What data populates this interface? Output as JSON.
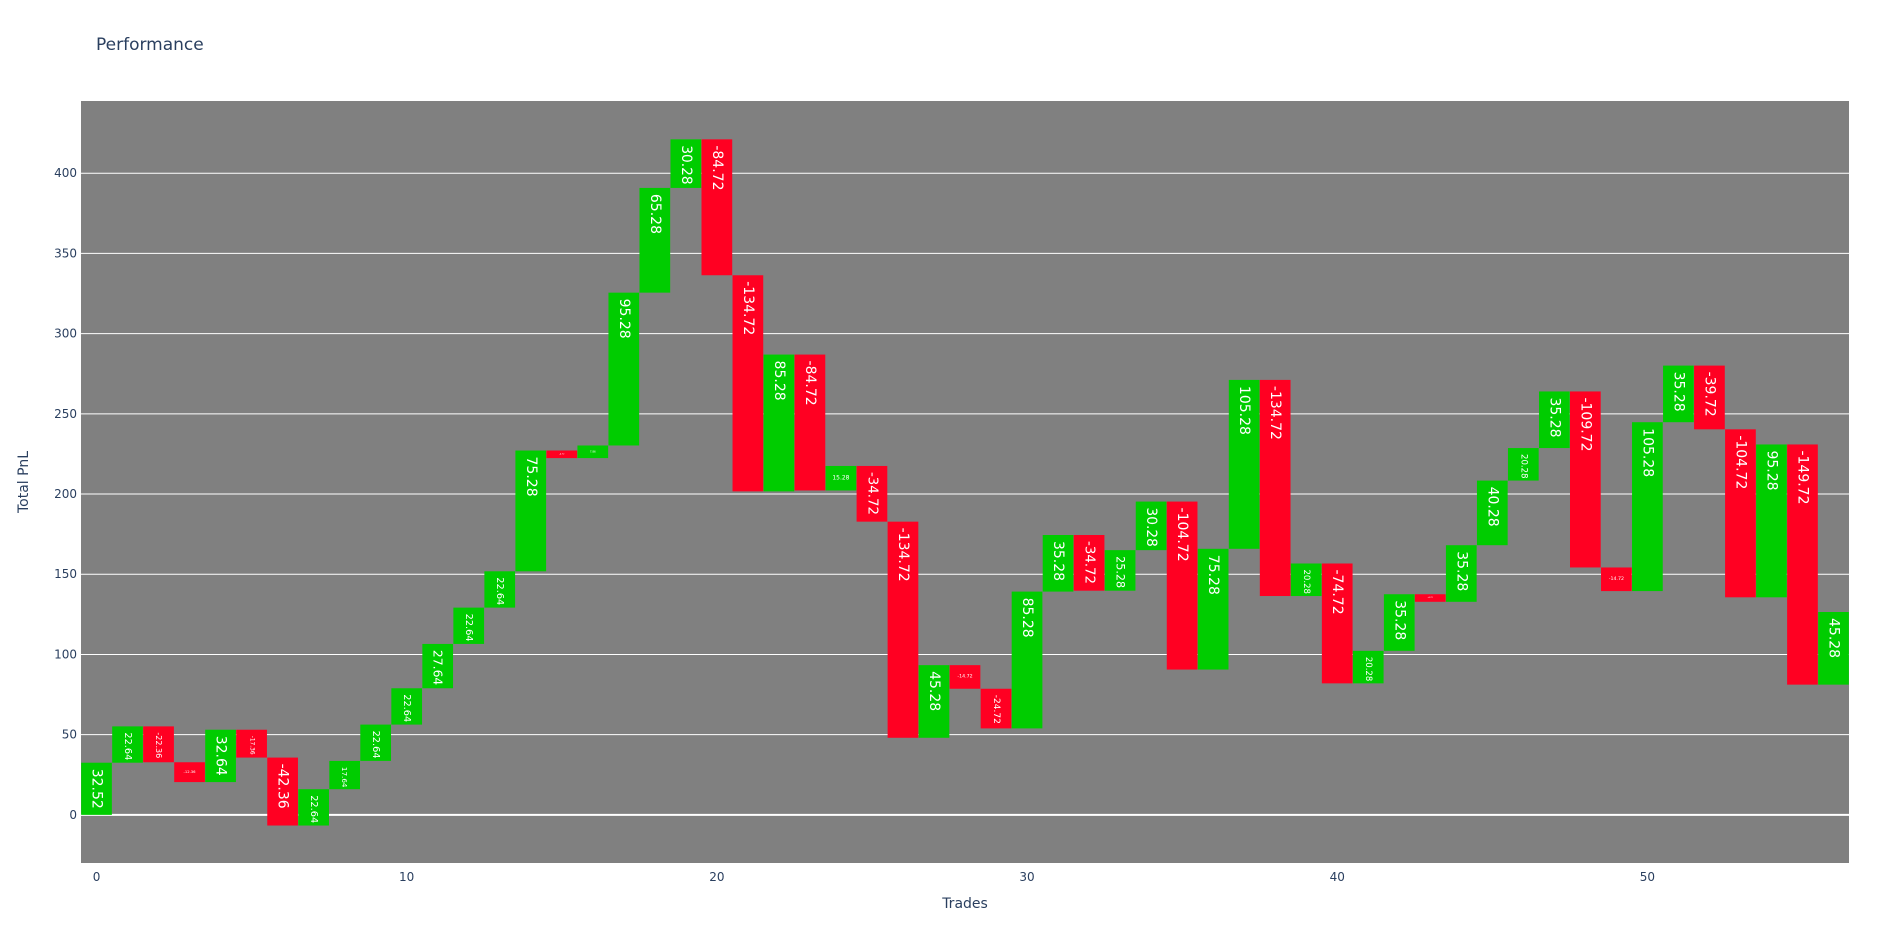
{
  "chart_data": {
    "type": "waterfall",
    "title": "Performance",
    "xlabel": "Trades",
    "ylabel": "Total PnL",
    "xlim": [
      -0.5,
      56.5
    ],
    "ylim": [
      -30,
      445
    ],
    "x_ticks": [
      0,
      10,
      20,
      30,
      40,
      50
    ],
    "y_ticks": [
      0,
      50,
      100,
      150,
      200,
      250,
      300,
      350,
      400
    ],
    "grid": true,
    "legend": "none",
    "colors": {
      "increase": "#00cc00",
      "decrease": "#ff0022",
      "plot_background": "#808080",
      "gridline": "#ffffff",
      "text": "#2a3f5f"
    },
    "values": [
      32.52,
      22.64,
      -22.36,
      -12.36,
      32.64,
      -17.36,
      -42.36,
      22.64,
      17.64,
      22.64,
      22.64,
      27.64,
      22.64,
      22.64,
      75.28,
      -4.72,
      7.86,
      95.28,
      65.28,
      30.28,
      -84.72,
      -134.72,
      85.28,
      -84.72,
      15.28,
      -34.72,
      -134.72,
      45.28,
      -14.72,
      -24.72,
      85.28,
      35.28,
      -34.72,
      25.28,
      30.28,
      -104.72,
      75.28,
      105.28,
      -134.72,
      20.28,
      -74.72,
      20.28,
      35.28,
      -4.72,
      35.28,
      40.28,
      20.28,
      35.28,
      -109.72,
      -14.72,
      105.28,
      35.28,
      -39.72,
      -104.72,
      95.28,
      -149.72,
      45.28
    ],
    "labels": [
      "32.52",
      "22.64",
      "-22.36",
      "-12.36",
      "32.64",
      "-17.36",
      "-42.36",
      "22.64",
      "17.64",
      "22.64",
      "22.64",
      "27.64",
      "22.64",
      "22.64",
      "75.28",
      "-4.72",
      "7.86",
      "95.28",
      "65.28",
      "30.28",
      "-84.72",
      "-134.72",
      "85.28",
      "-84.72",
      "15.28",
      "-34.72",
      "-134.72",
      "45.28",
      "-14.72",
      "-24.72",
      "85.28",
      "35.28",
      "-34.72",
      "25.28",
      "30.28",
      "-104.72",
      "75.28",
      "105.28",
      "-134.72",
      "20.28",
      "-74.72",
      "20.28",
      "35.28",
      "-4.72",
      "35.28",
      "40.28",
      "20.28",
      "35.28",
      "-109.72",
      "-14.72",
      "105.28",
      "35.28",
      "-39.72",
      "-104.72",
      "95.28",
      "-149.72",
      "45.28"
    ]
  }
}
